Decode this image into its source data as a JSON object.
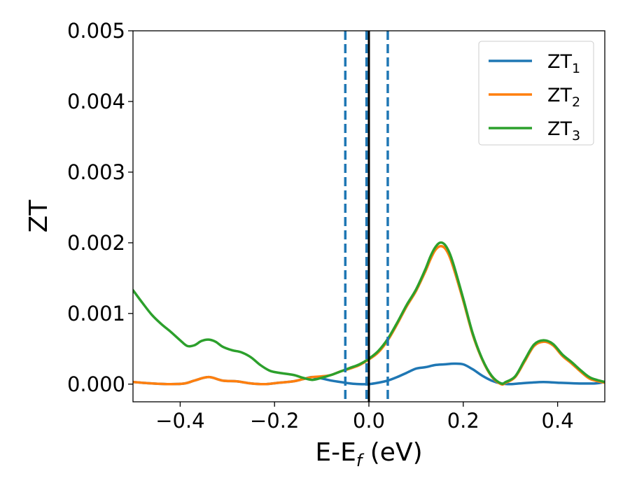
{
  "chart_data": {
    "type": "line",
    "xlabel": "E-E",
    "xlabel_sub": "f",
    "xlabel_unit": " (eV)",
    "ylabel": "ZT",
    "xlim": [
      -0.5,
      0.5
    ],
    "ylim": [
      -0.00025,
      0.005
    ],
    "xticks": [
      -0.4,
      -0.2,
      0.0,
      0.2,
      0.4
    ],
    "xtick_labels": [
      "−0.4",
      "−0.2",
      "0.0",
      "0.2",
      "0.4"
    ],
    "yticks": [
      0.0,
      0.001,
      0.002,
      0.003,
      0.004,
      0.005
    ],
    "ytick_labels": [
      "0.000",
      "0.001",
      "0.002",
      "0.003",
      "0.004",
      "0.005"
    ],
    "grid": false,
    "legend_position": "top-right",
    "vertical_lines": [
      {
        "x": -0.05,
        "style": "dashed",
        "color": "#1f77b4"
      },
      {
        "x": -0.005,
        "style": "dashed",
        "color": "#1f77b4"
      },
      {
        "x": 0.04,
        "style": "dashed",
        "color": "#1f77b4"
      },
      {
        "x": 0.0,
        "style": "solid",
        "color": "#000000"
      }
    ],
    "series": [
      {
        "name": "ZT",
        "name_sub": "1",
        "color": "#1f77b4",
        "x": [
          -0.5,
          -0.46,
          -0.42,
          -0.39,
          -0.37,
          -0.34,
          -0.31,
          -0.28,
          -0.25,
          -0.22,
          -0.19,
          -0.16,
          -0.14,
          -0.12,
          -0.1,
          -0.08,
          -0.06,
          -0.04,
          -0.02,
          0.0,
          0.02,
          0.04,
          0.06,
          0.08,
          0.1,
          0.12,
          0.14,
          0.16,
          0.18,
          0.2,
          0.22,
          0.24,
          0.26,
          0.28,
          0.3,
          0.32,
          0.34,
          0.37,
          0.4,
          0.44,
          0.48,
          0.5
        ],
        "y": [
          3e-05,
          1e-05,
          0.0,
          1e-05,
          5e-05,
          0.0001,
          5e-05,
          4e-05,
          1e-05,
          0.0,
          2e-05,
          4e-05,
          7e-05,
          0.0001,
          8e-05,
          5e-05,
          3e-05,
          1e-05,
          0.0,
          0.0,
          2e-05,
          5e-05,
          0.0001,
          0.00016,
          0.00022,
          0.00024,
          0.00027,
          0.00028,
          0.00029,
          0.00028,
          0.00021,
          0.00012,
          5e-05,
          1e-05,
          0.0,
          1e-05,
          2e-05,
          3e-05,
          2e-05,
          1e-05,
          1e-05,
          3e-05
        ]
      },
      {
        "name": "ZT",
        "name_sub": "2",
        "color": "#ff7f0e",
        "x": [
          -0.5,
          -0.46,
          -0.42,
          -0.39,
          -0.37,
          -0.34,
          -0.31,
          -0.28,
          -0.25,
          -0.22,
          -0.19,
          -0.16,
          -0.14,
          -0.12,
          -0.1,
          -0.08,
          -0.06,
          -0.04,
          -0.02,
          0.0,
          0.02,
          0.04,
          0.06,
          0.08,
          0.1,
          0.12,
          0.13,
          0.14,
          0.15,
          0.16,
          0.17,
          0.18,
          0.2,
          0.22,
          0.24,
          0.26,
          0.28,
          0.29,
          0.31,
          0.33,
          0.35,
          0.37,
          0.39,
          0.41,
          0.43,
          0.45,
          0.47,
          0.5
        ],
        "y": [
          3e-05,
          1e-05,
          0.0,
          1e-05,
          5e-05,
          0.0001,
          5e-05,
          4e-05,
          1e-05,
          0.0,
          2e-05,
          4e-05,
          7e-05,
          0.0001,
          0.00011,
          0.00013,
          0.00018,
          0.00022,
          0.00027,
          0.00035,
          0.00045,
          0.00062,
          0.00085,
          0.0011,
          0.00132,
          0.0016,
          0.00176,
          0.00189,
          0.00195,
          0.00193,
          0.00182,
          0.00163,
          0.00118,
          0.0007,
          0.00035,
          0.00011,
          0.0,
          2e-05,
          0.0001,
          0.00032,
          0.00054,
          0.0006,
          0.00055,
          0.0004,
          0.00029,
          0.00017,
          7e-05,
          2e-05
        ]
      },
      {
        "name": "ZT",
        "name_sub": "3",
        "color": "#2ca02c",
        "x": [
          -0.5,
          -0.48,
          -0.46,
          -0.44,
          -0.42,
          -0.4,
          -0.385,
          -0.37,
          -0.355,
          -0.34,
          -0.325,
          -0.31,
          -0.29,
          -0.27,
          -0.25,
          -0.23,
          -0.21,
          -0.19,
          -0.16,
          -0.14,
          -0.12,
          -0.1,
          -0.08,
          -0.06,
          -0.04,
          -0.02,
          0.0,
          0.02,
          0.04,
          0.06,
          0.08,
          0.1,
          0.12,
          0.13,
          0.14,
          0.15,
          0.16,
          0.17,
          0.18,
          0.2,
          0.22,
          0.24,
          0.26,
          0.28,
          0.29,
          0.31,
          0.33,
          0.35,
          0.37,
          0.39,
          0.41,
          0.43,
          0.45,
          0.47,
          0.5
        ],
        "y": [
          0.00133,
          0.00115,
          0.00098,
          0.00085,
          0.00074,
          0.00062,
          0.00054,
          0.00055,
          0.00061,
          0.00063,
          0.0006,
          0.00053,
          0.00048,
          0.00045,
          0.00038,
          0.00027,
          0.00019,
          0.00016,
          0.00013,
          9e-05,
          6e-05,
          9e-05,
          0.00013,
          0.00018,
          0.00023,
          0.00028,
          0.00036,
          0.00047,
          0.00064,
          0.00087,
          0.00112,
          0.00134,
          0.00163,
          0.0018,
          0.00193,
          0.002,
          0.00198,
          0.00187,
          0.00168,
          0.00121,
          0.00072,
          0.00036,
          0.00012,
          1e-05,
          3e-05,
          0.00011,
          0.00034,
          0.00056,
          0.00062,
          0.00057,
          0.00042,
          0.00031,
          0.00019,
          9e-05,
          3e-05
        ]
      }
    ]
  }
}
